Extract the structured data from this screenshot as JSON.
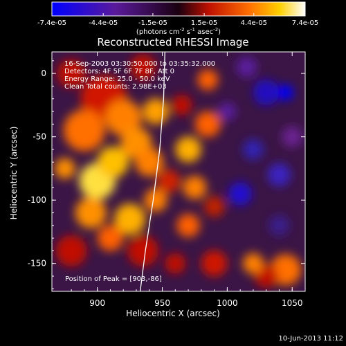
{
  "chart_data": {
    "type": "heatmap",
    "title": "Reconstructed RHESSI Image",
    "xlabel": "Heliocentric X (arcsec)",
    "ylabel": "Heliocentric Y (arcsec)",
    "x_ticks": [
      "900",
      "950",
      "1000",
      "1050"
    ],
    "x_tick_values": [
      900,
      950,
      1000,
      1050
    ],
    "y_ticks": [
      "0",
      "-50",
      "-100",
      "-150"
    ],
    "y_tick_values": [
      0,
      -50,
      -100,
      -150
    ],
    "xlim": [
      865,
      1060
    ],
    "ylim": [
      -172,
      17
    ],
    "colorbar": {
      "ticks": [
        "-7.4e-05",
        "-4.4e-05",
        "-1.5e-05",
        "1.5e-05",
        "4.4e-05",
        "7.4e-05"
      ],
      "tick_values": [
        -7.4e-05,
        -4.4e-05,
        -1.5e-05,
        1.5e-05,
        4.4e-05,
        7.4e-05
      ],
      "range": [
        -7.4e-05,
        7.4e-05
      ],
      "units_line": "(photons cm",
      "units_exp1": "-2",
      "units_mid": " s",
      "units_exp2": "-1",
      "units_end": " asec",
      "units_exp3": "-2",
      "units_close": ")"
    },
    "annotations": [
      "16-Sep-2003 03:30:50.000 to 03:35:32.000",
      "Detectors: 4F 5F 6F 7F 8F, Att 0",
      "Energy Range: 25.0 - 50.0 keV",
      "Clean    Total counts: 2.98E+03"
    ],
    "peak_label": "Position of Peak = [903,-86]",
    "peak": [
      903,
      -86
    ],
    "limb_color": "#ffffff"
  },
  "footer": {
    "date": "10-Jun-2013 11:12"
  }
}
